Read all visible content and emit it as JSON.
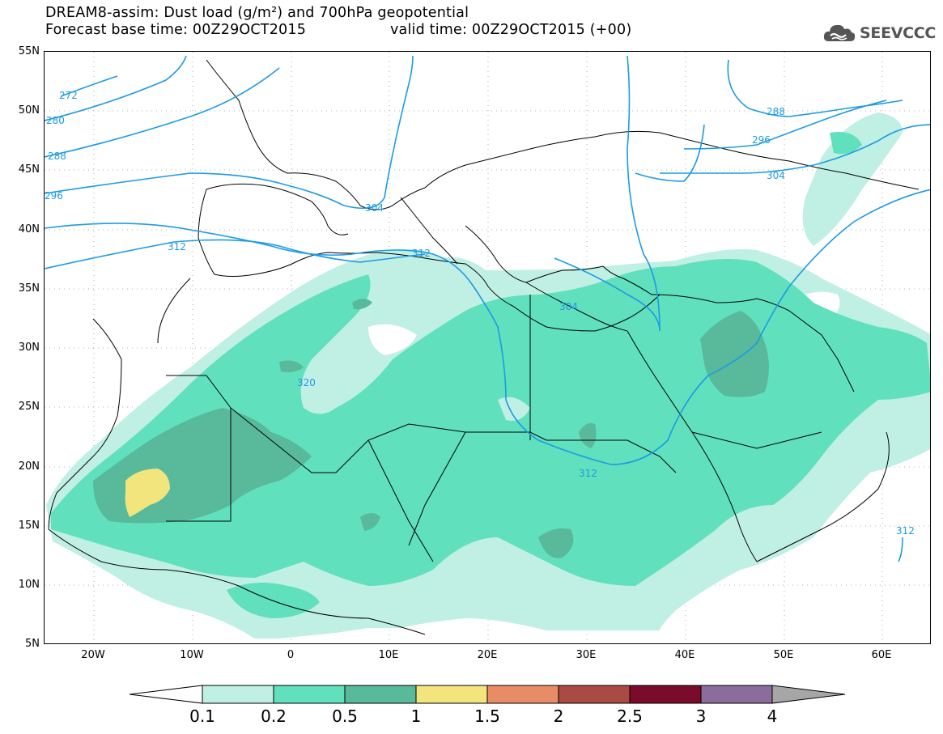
{
  "title": {
    "line1": "DREAM8-assim: Dust load (g/m²) and 700hPa geopotential",
    "base_time": "Forecast base time: 00Z29OCT2015",
    "valid_time": "valid time: 00Z29OCT2015 (+00)"
  },
  "logo": {
    "text": "SEEVCCC",
    "icon": "cloud-icon"
  },
  "axes": {
    "lat_labels": [
      "55N",
      "50N",
      "45N",
      "40N",
      "35N",
      "30N",
      "25N",
      "20N",
      "15N",
      "10N",
      "5N"
    ],
    "lon_labels": [
      "20W",
      "10W",
      "0",
      "10E",
      "20E",
      "30E",
      "40E",
      "50E",
      "60E"
    ]
  },
  "contour_labels": [
    "272",
    "280",
    "288",
    "296",
    "304",
    "312",
    "320",
    "288",
    "296",
    "304",
    "304",
    "312",
    "304",
    "312",
    "312"
  ],
  "colorbar": {
    "labels": [
      "0.1",
      "0.2",
      "0.5",
      "1",
      "1.5",
      "2",
      "2.5",
      "3",
      "4"
    ],
    "colors": [
      "#ffffff",
      "#c0efe4",
      "#60e0bd",
      "#58ba9a",
      "#f2e57e",
      "#e88c66",
      "#a94a43",
      "#7a0b2a",
      "#8a6d9c",
      "#a6a6a6"
    ]
  },
  "colors": {
    "contour": "#1c9be4",
    "dust_01": "#c0efe4",
    "dust_02": "#60e0bd",
    "dust_05": "#58ba9a",
    "dust_1": "#f2e57e"
  }
}
